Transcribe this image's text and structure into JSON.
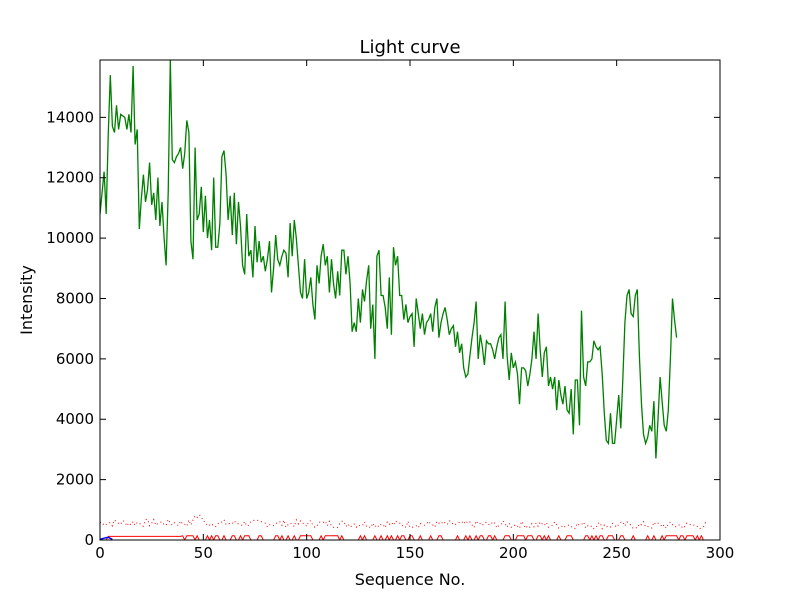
{
  "chart_data": {
    "type": "line",
    "title": "Light curve",
    "xlabel": "Sequence No.",
    "ylabel": "Intensity",
    "xlim": [
      0,
      300
    ],
    "ylim": [
      0,
      15900
    ],
    "xticks": [
      0,
      50,
      100,
      150,
      200,
      250,
      300
    ],
    "yticks": [
      0,
      2000,
      4000,
      6000,
      8000,
      10000,
      12000,
      14000
    ],
    "grid": false,
    "legend": "none",
    "series": [
      {
        "color": "#008000",
        "style": "solid",
        "points": [
          [
            0,
            10800
          ],
          [
            2,
            12200
          ],
          [
            3,
            10800
          ],
          [
            4,
            13500
          ],
          [
            5,
            15400
          ],
          [
            6,
            13700
          ],
          [
            7,
            13500
          ],
          [
            8,
            14400
          ],
          [
            9,
            13600
          ],
          [
            10,
            14100
          ],
          [
            12,
            14000
          ],
          [
            13,
            13600
          ],
          [
            14,
            14100
          ],
          [
            15,
            13500
          ],
          [
            16,
            15700
          ],
          [
            17,
            13100
          ],
          [
            18,
            13600
          ],
          [
            19,
            10300
          ],
          [
            20,
            11300
          ],
          [
            21,
            12100
          ],
          [
            22,
            11200
          ],
          [
            23,
            11600
          ],
          [
            24,
            12500
          ],
          [
            25,
            11100
          ],
          [
            26,
            11500
          ],
          [
            27,
            10600
          ],
          [
            28,
            12000
          ],
          [
            29,
            10400
          ],
          [
            30,
            11200
          ],
          [
            31,
            10000
          ],
          [
            32,
            9100
          ],
          [
            33,
            11500
          ],
          [
            34,
            15900
          ],
          [
            35,
            12600
          ],
          [
            36,
            12500
          ],
          [
            37,
            12700
          ],
          [
            38,
            12800
          ],
          [
            39,
            13000
          ],
          [
            40,
            12300
          ],
          [
            41,
            12800
          ],
          [
            42,
            13900
          ],
          [
            43,
            13500
          ],
          [
            44,
            9900
          ],
          [
            45,
            9300
          ],
          [
            46,
            13000
          ],
          [
            47,
            10600
          ],
          [
            48,
            10800
          ],
          [
            49,
            11700
          ],
          [
            50,
            10200
          ],
          [
            51,
            11400
          ],
          [
            52,
            10000
          ],
          [
            53,
            10600
          ],
          [
            54,
            9600
          ],
          [
            55,
            12000
          ],
          [
            56,
            9700
          ],
          [
            57,
            9700
          ],
          [
            58,
            10500
          ],
          [
            59,
            12700
          ],
          [
            60,
            12900
          ],
          [
            61,
            12100
          ],
          [
            62,
            10600
          ],
          [
            63,
            11400
          ],
          [
            64,
            10100
          ],
          [
            65,
            11500
          ],
          [
            66,
            9800
          ],
          [
            67,
            11200
          ],
          [
            68,
            10400
          ],
          [
            69,
            9100
          ],
          [
            70,
            8800
          ],
          [
            71,
            10800
          ],
          [
            72,
            9400
          ],
          [
            73,
            9600
          ],
          [
            74,
            8700
          ],
          [
            75,
            10400
          ],
          [
            76,
            9200
          ],
          [
            77,
            9900
          ],
          [
            78,
            9200
          ],
          [
            79,
            9400
          ],
          [
            80,
            8900
          ],
          [
            81,
            9300
          ],
          [
            82,
            9900
          ],
          [
            83,
            8200
          ],
          [
            84,
            9000
          ],
          [
            85,
            10100
          ],
          [
            86,
            9300
          ],
          [
            87,
            9100
          ],
          [
            88,
            9400
          ],
          [
            89,
            9600
          ],
          [
            90,
            9500
          ],
          [
            91,
            8700
          ],
          [
            92,
            10500
          ],
          [
            93,
            9400
          ],
          [
            94,
            10600
          ],
          [
            95,
            10000
          ],
          [
            96,
            9100
          ],
          [
            97,
            8200
          ],
          [
            98,
            8000
          ],
          [
            99,
            9300
          ],
          [
            100,
            8000
          ],
          [
            101,
            8200
          ],
          [
            102,
            8700
          ],
          [
            103,
            7800
          ],
          [
            104,
            7300
          ],
          [
            105,
            9100
          ],
          [
            106,
            8500
          ],
          [
            107,
            9400
          ],
          [
            108,
            9800
          ],
          [
            109,
            9100
          ],
          [
            110,
            9400
          ],
          [
            111,
            8200
          ],
          [
            112,
            9300
          ],
          [
            113,
            8500
          ],
          [
            114,
            8000
          ],
          [
            115,
            8900
          ],
          [
            116,
            8100
          ],
          [
            117,
            9600
          ],
          [
            118,
            9600
          ],
          [
            119,
            8800
          ],
          [
            120,
            9400
          ],
          [
            121,
            8500
          ],
          [
            122,
            6900
          ],
          [
            123,
            7200
          ],
          [
            124,
            6900
          ],
          [
            125,
            8000
          ],
          [
            126,
            7200
          ],
          [
            127,
            8300
          ],
          [
            128,
            7900
          ],
          [
            129,
            8600
          ],
          [
            130,
            9100
          ],
          [
            131,
            7000
          ],
          [
            132,
            7800
          ],
          [
            133,
            6000
          ],
          [
            134,
            9400
          ],
          [
            135,
            9600
          ],
          [
            136,
            8100
          ],
          [
            137,
            8100
          ],
          [
            138,
            7700
          ],
          [
            139,
            7000
          ],
          [
            140,
            8700
          ],
          [
            141,
            6800
          ],
          [
            142,
            9700
          ],
          [
            143,
            9100
          ],
          [
            144,
            9400
          ],
          [
            145,
            8100
          ],
          [
            146,
            8100
          ],
          [
            147,
            7300
          ],
          [
            148,
            7800
          ],
          [
            149,
            7200
          ],
          [
            150,
            7400
          ],
          [
            151,
            7500
          ],
          [
            152,
            6400
          ],
          [
            153,
            8000
          ],
          [
            154,
            7500
          ],
          [
            155,
            7000
          ],
          [
            156,
            7500
          ],
          [
            157,
            6800
          ],
          [
            158,
            7200
          ],
          [
            159,
            7300
          ],
          [
            160,
            7500
          ],
          [
            161,
            6900
          ],
          [
            162,
            7700
          ],
          [
            163,
            8000
          ],
          [
            164,
            6700
          ],
          [
            165,
            7200
          ],
          [
            166,
            7500
          ],
          [
            167,
            7700
          ],
          [
            168,
            7300
          ],
          [
            169,
            6800
          ],
          [
            170,
            7000
          ],
          [
            171,
            7100
          ],
          [
            172,
            6400
          ],
          [
            173,
            6900
          ],
          [
            174,
            6200
          ],
          [
            175,
            6500
          ],
          [
            176,
            5700
          ],
          [
            177,
            5400
          ],
          [
            178,
            5500
          ],
          [
            179,
            6100
          ],
          [
            180,
            6700
          ],
          [
            181,
            7200
          ],
          [
            182,
            7900
          ],
          [
            183,
            6000
          ],
          [
            184,
            6800
          ],
          [
            185,
            6400
          ],
          [
            186,
            5800
          ],
          [
            187,
            6600
          ],
          [
            188,
            6500
          ],
          [
            189,
            6500
          ],
          [
            190,
            6300
          ],
          [
            191,
            6000
          ],
          [
            192,
            6400
          ],
          [
            193,
            6700
          ],
          [
            194,
            6800
          ],
          [
            195,
            6000
          ],
          [
            196,
            7900
          ],
          [
            197,
            6100
          ],
          [
            198,
            5300
          ],
          [
            199,
            6200
          ],
          [
            200,
            5700
          ],
          [
            201,
            5900
          ],
          [
            202,
            5500
          ],
          [
            203,
            4500
          ],
          [
            204,
            5700
          ],
          [
            205,
            5700
          ],
          [
            206,
            5600
          ],
          [
            207,
            5100
          ],
          [
            208,
            5500
          ],
          [
            209,
            6000
          ],
          [
            210,
            6900
          ],
          [
            211,
            6000
          ],
          [
            212,
            7500
          ],
          [
            213,
            6300
          ],
          [
            214,
            5400
          ],
          [
            215,
            6200
          ],
          [
            216,
            6400
          ],
          [
            217,
            5100
          ],
          [
            218,
            5400
          ],
          [
            219,
            5000
          ],
          [
            220,
            5400
          ],
          [
            221,
            4300
          ],
          [
            222,
            5300
          ],
          [
            223,
            4800
          ],
          [
            224,
            4500
          ],
          [
            225,
            5100
          ],
          [
            226,
            4300
          ],
          [
            227,
            4200
          ],
          [
            228,
            5000
          ],
          [
            229,
            3500
          ],
          [
            230,
            5300
          ],
          [
            231,
            5300
          ],
          [
            232,
            3800
          ],
          [
            233,
            7600
          ],
          [
            234,
            5400
          ],
          [
            235,
            5100
          ],
          [
            236,
            5900
          ],
          [
            237,
            5900
          ],
          [
            238,
            6000
          ],
          [
            239,
            6600
          ],
          [
            240,
            6400
          ],
          [
            241,
            6300
          ],
          [
            242,
            6400
          ],
          [
            243,
            5500
          ],
          [
            244,
            4200
          ],
          [
            245,
            3300
          ],
          [
            246,
            3200
          ],
          [
            247,
            4200
          ],
          [
            248,
            3200
          ],
          [
            249,
            3200
          ],
          [
            250,
            4000
          ],
          [
            251,
            4800
          ],
          [
            252,
            3700
          ],
          [
            253,
            5400
          ],
          [
            254,
            7200
          ],
          [
            255,
            8100
          ],
          [
            256,
            8300
          ],
          [
            257,
            7500
          ],
          [
            258,
            7400
          ],
          [
            259,
            8100
          ],
          [
            260,
            8300
          ],
          [
            261,
            6100
          ],
          [
            262,
            4500
          ],
          [
            263,
            3500
          ],
          [
            264,
            3200
          ],
          [
            265,
            3400
          ],
          [
            266,
            3800
          ],
          [
            267,
            3600
          ],
          [
            268,
            4600
          ],
          [
            269,
            2700
          ],
          [
            270,
            4000
          ],
          [
            271,
            5400
          ],
          [
            272,
            4600
          ],
          [
            273,
            3800
          ],
          [
            274,
            3600
          ],
          [
            275,
            4300
          ],
          [
            276,
            6000
          ],
          [
            277,
            8000
          ],
          [
            278,
            7300
          ],
          [
            279,
            6700
          ]
        ]
      },
      {
        "color": "#ff0000",
        "style": "dotted",
        "values_description": "jagged red dotted baseline fluctuating around 300-900 over sequence 0-294"
      },
      {
        "color": "#ff0000",
        "style": "solid",
        "values_description": "red solid baseline around 0-150 over sequence 0-294"
      },
      {
        "color": "#0000ff",
        "style": "solid",
        "values_description": "short blue segment near zero at sequence 0-6"
      }
    ]
  }
}
